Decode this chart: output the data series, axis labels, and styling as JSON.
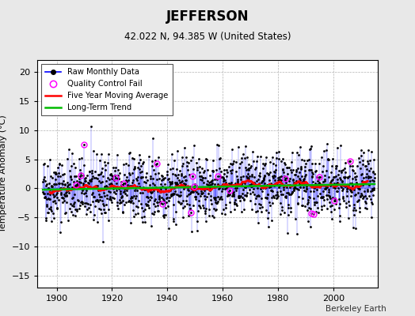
{
  "title": "JEFFERSON",
  "subtitle": "42.022 N, 94.385 W (United States)",
  "ylabel": "Temperature Anomaly (°C)",
  "credit": "Berkeley Earth",
  "year_start": 1895,
  "year_end": 2014,
  "ylim": [
    -17,
    22
  ],
  "yticks": [
    -15,
    -10,
    -5,
    0,
    5,
    10,
    15,
    20
  ],
  "xticks": [
    1900,
    1920,
    1940,
    1960,
    1980,
    2000
  ],
  "raw_color": "#0000ff",
  "moving_avg_color": "#ff0000",
  "trend_color": "#00bb00",
  "qc_color": "#ff00ff",
  "background_color": "#e8e8e8",
  "plot_bg_color": "#ffffff",
  "seed": 42,
  "noise_std": 2.8,
  "n_qc": 18
}
